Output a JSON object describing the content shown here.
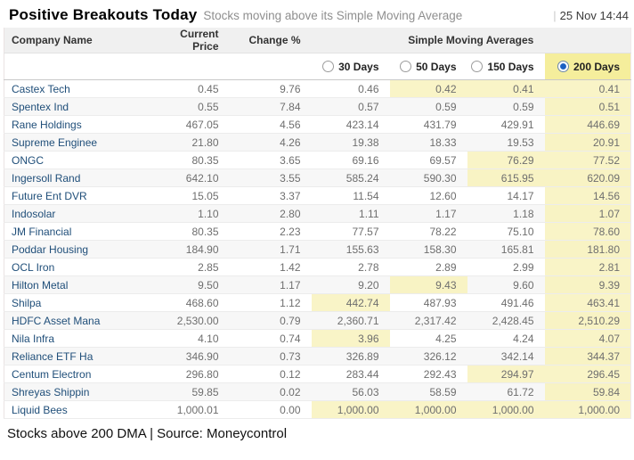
{
  "header": {
    "title": "Positive Breakouts Today",
    "subtitle": "Stocks moving above its Simple Moving Average",
    "separator": "|",
    "timestamp": "25 Nov 14:44"
  },
  "table": {
    "columns": {
      "company": "Company Name",
      "price": "Current Price",
      "change": "Change %",
      "sma_group": "Simple Moving Averages"
    },
    "sma_options": [
      {
        "label": "30 Days",
        "selected": false
      },
      {
        "label": "50 Days",
        "selected": false
      },
      {
        "label": "150 Days",
        "selected": false
      },
      {
        "label": "200 Days",
        "selected": true
      }
    ],
    "rows": [
      {
        "company": "Castex Tech",
        "price": "0.45",
        "change": "9.76",
        "sma": [
          "0.46",
          "0.42",
          "0.41",
          "0.41"
        ],
        "hl": [
          false,
          true,
          true,
          true
        ]
      },
      {
        "company": "Spentex Ind",
        "price": "0.55",
        "change": "7.84",
        "sma": [
          "0.57",
          "0.59",
          "0.59",
          "0.51"
        ],
        "hl": [
          false,
          false,
          false,
          true
        ]
      },
      {
        "company": "Rane Holdings",
        "price": "467.05",
        "change": "4.56",
        "sma": [
          "423.14",
          "431.79",
          "429.91",
          "446.69"
        ],
        "hl": [
          false,
          false,
          false,
          true
        ]
      },
      {
        "company": "Supreme Enginee",
        "price": "21.80",
        "change": "4.26",
        "sma": [
          "19.38",
          "18.33",
          "19.53",
          "20.91"
        ],
        "hl": [
          false,
          false,
          false,
          true
        ]
      },
      {
        "company": "ONGC",
        "price": "80.35",
        "change": "3.65",
        "sma": [
          "69.16",
          "69.57",
          "76.29",
          "77.52"
        ],
        "hl": [
          false,
          false,
          true,
          true
        ]
      },
      {
        "company": "Ingersoll Rand",
        "price": "642.10",
        "change": "3.55",
        "sma": [
          "585.24",
          "590.30",
          "615.95",
          "620.09"
        ],
        "hl": [
          false,
          false,
          true,
          true
        ]
      },
      {
        "company": "Future Ent DVR",
        "price": "15.05",
        "change": "3.37",
        "sma": [
          "11.54",
          "12.60",
          "14.17",
          "14.56"
        ],
        "hl": [
          false,
          false,
          false,
          true
        ]
      },
      {
        "company": "Indosolar",
        "price": "1.10",
        "change": "2.80",
        "sma": [
          "1.11",
          "1.17",
          "1.18",
          "1.07"
        ],
        "hl": [
          false,
          false,
          false,
          true
        ]
      },
      {
        "company": "JM Financial",
        "price": "80.35",
        "change": "2.23",
        "sma": [
          "77.57",
          "78.22",
          "75.10",
          "78.60"
        ],
        "hl": [
          false,
          false,
          false,
          true
        ]
      },
      {
        "company": "Poddar Housing",
        "price": "184.90",
        "change": "1.71",
        "sma": [
          "155.63",
          "158.30",
          "165.81",
          "181.80"
        ],
        "hl": [
          false,
          false,
          false,
          true
        ]
      },
      {
        "company": "OCL Iron",
        "price": "2.85",
        "change": "1.42",
        "sma": [
          "2.78",
          "2.89",
          "2.99",
          "2.81"
        ],
        "hl": [
          false,
          false,
          false,
          true
        ]
      },
      {
        "company": "Hilton Metal",
        "price": "9.50",
        "change": "1.17",
        "sma": [
          "9.20",
          "9.43",
          "9.60",
          "9.39"
        ],
        "hl": [
          false,
          true,
          false,
          true
        ]
      },
      {
        "company": "Shilpa",
        "price": "468.60",
        "change": "1.12",
        "sma": [
          "442.74",
          "487.93",
          "491.46",
          "463.41"
        ],
        "hl": [
          true,
          false,
          false,
          true
        ]
      },
      {
        "company": "HDFC Asset Mana",
        "price": "2,530.00",
        "change": "0.79",
        "sma": [
          "2,360.71",
          "2,317.42",
          "2,428.45",
          "2,510.29"
        ],
        "hl": [
          false,
          false,
          false,
          true
        ]
      },
      {
        "company": "Nila Infra",
        "price": "4.10",
        "change": "0.74",
        "sma": [
          "3.96",
          "4.25",
          "4.24",
          "4.07"
        ],
        "hl": [
          true,
          false,
          false,
          true
        ]
      },
      {
        "company": "Reliance ETF Ha",
        "price": "346.90",
        "change": "0.73",
        "sma": [
          "326.89",
          "326.12",
          "342.14",
          "344.37"
        ],
        "hl": [
          false,
          false,
          false,
          true
        ]
      },
      {
        "company": "Centum Electron",
        "price": "296.80",
        "change": "0.12",
        "sma": [
          "283.44",
          "292.43",
          "294.97",
          "296.45"
        ],
        "hl": [
          false,
          false,
          true,
          true
        ]
      },
      {
        "company": "Shreyas Shippin",
        "price": "59.85",
        "change": "0.02",
        "sma": [
          "56.03",
          "58.59",
          "61.72",
          "59.84"
        ],
        "hl": [
          false,
          false,
          false,
          true
        ]
      },
      {
        "company": "Liquid Bees",
        "price": "1,000.01",
        "change": "0.00",
        "sma": [
          "1,000.00",
          "1,000.00",
          "1,000.00",
          "1,000.00"
        ],
        "hl": [
          true,
          true,
          true,
          true
        ]
      }
    ]
  },
  "footer": {
    "text": "Stocks above 200 DMA | Source: Moneycontrol"
  },
  "colors": {
    "highlight_body": "#f9f4c7",
    "highlight_selected_header": "#f5ee9c",
    "company_link": "#1f4e79",
    "radio_selected": "#1c60c2",
    "header_bg": "#f0f0f0"
  }
}
